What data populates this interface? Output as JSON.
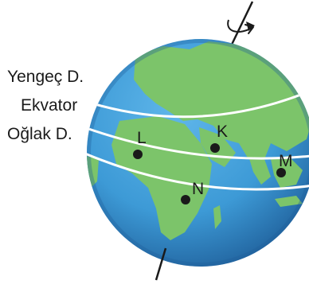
{
  "figure": {
    "labels": {
      "tropic_cancer": "Yengeç D.",
      "equator": "Ekvator",
      "tropic_capricorn": "Oğlak D."
    },
    "points": [
      {
        "id": "L",
        "label": "L"
      },
      {
        "id": "K",
        "label": "K"
      },
      {
        "id": "M",
        "label": "M"
      },
      {
        "id": "N",
        "label": "N"
      }
    ],
    "colors": {
      "ocean": "#3d9ad6",
      "ocean_dark": "#1f6aa8",
      "land": "#7cc46a",
      "land_dark": "#5aa84e",
      "lines": "#ffffff",
      "axis": "#1a1a1a"
    },
    "icons": [
      "rotation-arrow-icon",
      "earth-axis-icon"
    ]
  }
}
